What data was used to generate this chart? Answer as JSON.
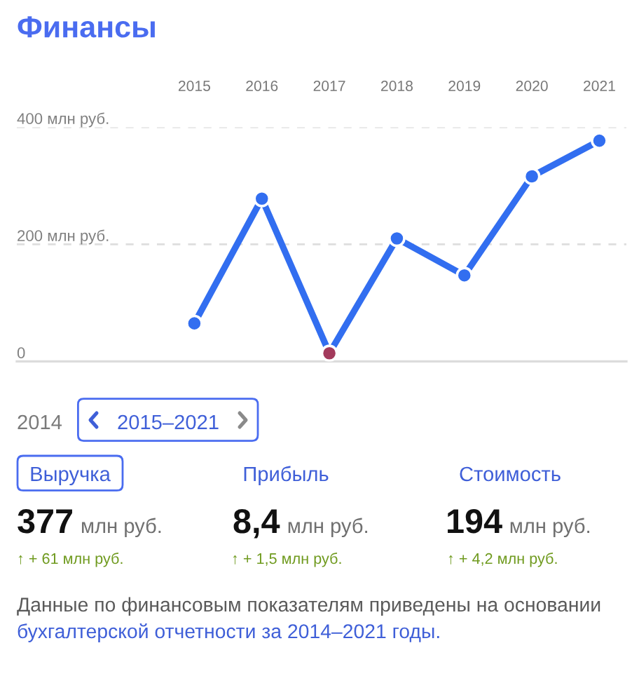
{
  "chart_data": {
    "type": "line",
    "title": "Финансы",
    "categories": [
      "2015",
      "2016",
      "2017",
      "2018",
      "2019",
      "2020",
      "2021"
    ],
    "series": [
      {
        "color": "#326ef0",
        "colors": [
          "#326ef0",
          "#326ef0",
          "#a33a5c",
          "#326ef0",
          "#326ef0",
          "#326ef0",
          "#326ef0"
        ],
        "values": [
          65,
          278,
          14,
          210,
          147,
          316,
          377
        ]
      }
    ],
    "ylim": [
      0,
      400
    ],
    "yticks": [
      0,
      {
        "value": 200,
        "label": "200 млн руб."
      },
      {
        "value": 400,
        "label": "400 млн руб."
      }
    ],
    "grid": "y",
    "marker": "circle",
    "line_style": "solid",
    "annotations": [
      "2014",
      "2015–2021",
      "Выручка",
      "Прибыль",
      "Стоимость",
      "377",
      "млн руб.",
      "8,4",
      "млн руб.",
      "194",
      "млн руб.",
      "↑ + 61 млн руб.",
      "↑ + 1,5 млн руб.",
      "↑ + 4,2 млн руб.",
      "Данные по финансовым показателям приведены на основании",
      "бухгалтерской отчетности за 2014–2021 годы."
    ]
  }
}
